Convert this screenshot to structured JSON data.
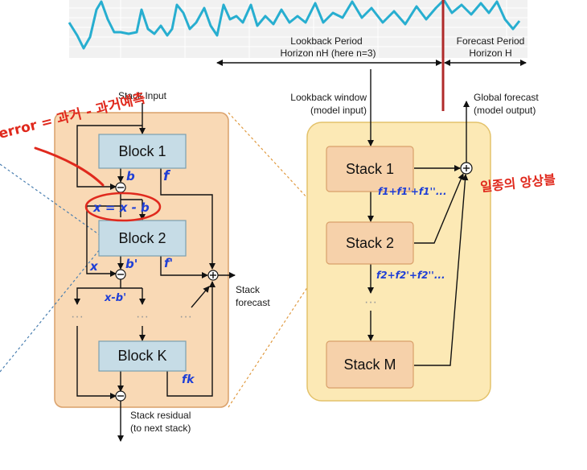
{
  "top": {
    "lookback_line1": "Lookback Period",
    "lookback_line2": "Horizon nH (here n=3)",
    "forecast_line1": "Forecast Period",
    "forecast_line2": "Horizon H"
  },
  "stack_detail": {
    "input_label": "Stack Input",
    "block1": "Block 1",
    "block2": "Block 2",
    "blockK": "Block K",
    "forecast_label_1": "Stack",
    "forecast_label_2": "forecast",
    "residual_label_1": "Stack residual",
    "residual_label_2": "(to next stack)",
    "dots": "···"
  },
  "model": {
    "lookback_window_1": "Lookback window",
    "lookback_window_2": "(model input)",
    "global_forecast_1": "Global forecast",
    "global_forecast_2": "(model output)",
    "stack1": "Stack 1",
    "stack2": "Stack 2",
    "stackM": "Stack M",
    "dots": "···"
  },
  "annotations": {
    "red_top": "error = 과거 - 과거예측",
    "red_right": "일종의 앙상블",
    "red_circle_text": "x = x - b",
    "blue_b": "b",
    "blue_f": "f",
    "blue_b_prime": "b'",
    "blue_f_prime": "f'",
    "blue_x": "x",
    "blue_x_minus_b": "x-b'",
    "blue_fk": "fk",
    "blue_stack1_sum": "f1+f1'+f1''...",
    "blue_stack2_sum": "f2+f2'+f2''..."
  },
  "colors": {
    "series": "#27aed0",
    "stack_fill": "#f9d9b5",
    "stack_border": "#d9a06a",
    "model_fill": "#fce9b5",
    "model_border": "#e3c26b",
    "block_fill": "#c6dce6",
    "block_border": "#7a9fb0",
    "stackbox_fill": "#f6d1aa",
    "divider_red": "#b02a2a"
  }
}
